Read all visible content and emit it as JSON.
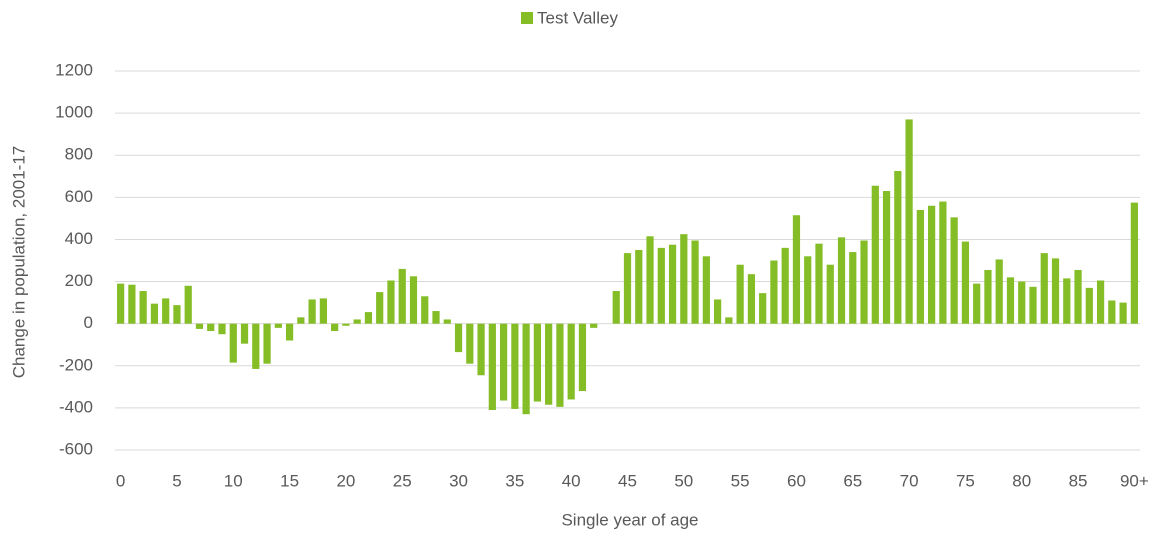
{
  "chart_data": {
    "type": "bar",
    "legend": "top",
    "series": [
      {
        "name": "Test Valley",
        "color": "#84bd26",
        "values": [
          190,
          185,
          155,
          95,
          120,
          88,
          180,
          -25,
          -35,
          -50,
          -185,
          -95,
          -215,
          -190,
          -20,
          -80,
          30,
          115,
          120,
          -35,
          -10,
          20,
          55,
          150,
          205,
          260,
          225,
          130,
          60,
          20,
          -135,
          -190,
          -245,
          -410,
          -365,
          -405,
          -430,
          -370,
          -385,
          -395,
          -360,
          -320,
          -20,
          0,
          155,
          335,
          350,
          415,
          360,
          375,
          425,
          395,
          320,
          115,
          30,
          280,
          235,
          145,
          300,
          360,
          515,
          320,
          380,
          280,
          410,
          340,
          395,
          655,
          630,
          725,
          970,
          540,
          560,
          580,
          505,
          390,
          190,
          255,
          305,
          220,
          200,
          175,
          335,
          310,
          215,
          255,
          170,
          205,
          110,
          100,
          575
        ]
      }
    ],
    "categories": [
      "0",
      null,
      null,
      null,
      null,
      "5",
      null,
      null,
      null,
      null,
      "10",
      null,
      null,
      null,
      null,
      "15",
      null,
      null,
      null,
      null,
      "20",
      null,
      null,
      null,
      null,
      "25",
      null,
      null,
      null,
      null,
      "30",
      null,
      null,
      null,
      null,
      "35",
      null,
      null,
      null,
      null,
      "40",
      null,
      null,
      null,
      null,
      "45",
      null,
      null,
      null,
      null,
      "50",
      null,
      null,
      null,
      null,
      "55",
      null,
      null,
      null,
      null,
      "60",
      null,
      null,
      null,
      null,
      "65",
      null,
      null,
      null,
      null,
      "70",
      null,
      null,
      null,
      null,
      "75",
      null,
      null,
      null,
      null,
      "80",
      null,
      null,
      null,
      null,
      "85",
      null,
      null,
      null,
      null,
      "90+"
    ],
    "x_label": "Single year of age",
    "y_label": "Change in population, 2001-17",
    "ylim": [
      -600,
      1200
    ],
    "yticks": [
      -600,
      -400,
      -200,
      0,
      200,
      400,
      600,
      800,
      1000,
      1200
    ],
    "grid": true
  }
}
